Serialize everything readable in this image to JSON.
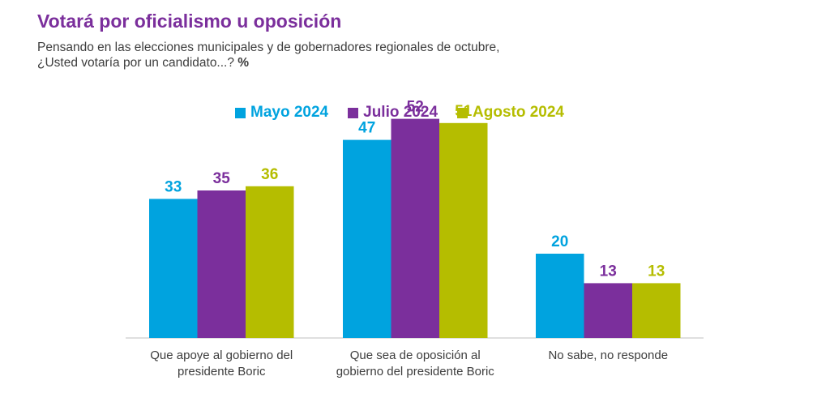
{
  "header": {
    "title": "Votará por oficialismo u oposición",
    "subtitle_line1": "Pensando en las elecciones municipales y de gobernadores regionales de octubre,",
    "subtitle_line2": "¿Usted votaría por un candidato...?",
    "unit": "%"
  },
  "colors": {
    "Mayo 2024": "#00a3df",
    "Julio 2024": "#7b2f9c",
    "Agosto 2024": "#b5bd00"
  },
  "chart_data": {
    "type": "bar",
    "title": "Votará por oficialismo u oposición",
    "ylabel": "%",
    "ylim": [
      0,
      60
    ],
    "legend_position": "top-center",
    "categories": [
      [
        "Que apoye al gobierno del",
        "presidente Boric"
      ],
      [
        "Que sea de oposición al",
        "gobierno del presidente Boric"
      ],
      [
        "No sabe, no responde"
      ]
    ],
    "series": [
      {
        "name": "Mayo 2024",
        "values": [
          33,
          47,
          20
        ]
      },
      {
        "name": "Julio 2024",
        "values": [
          35,
          52,
          13
        ]
      },
      {
        "name": "Agosto 2024",
        "values": [
          36,
          51,
          13
        ]
      }
    ]
  }
}
